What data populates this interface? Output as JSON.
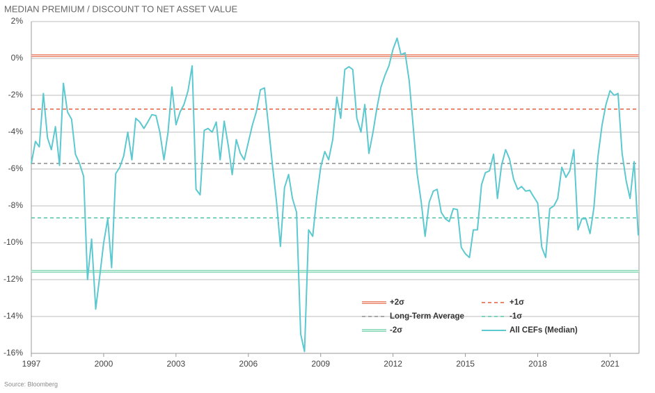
{
  "chart_data": {
    "type": "line",
    "title": "MEDIAN PREMIUM / DISCOUNT TO NET ASSET VALUE",
    "source": "Source: Bloomberg",
    "x": [
      1997,
      1997.17,
      1997.33,
      1997.5,
      1997.67,
      1997.83,
      1998,
      1998.17,
      1998.33,
      1998.5,
      1998.67,
      1998.83,
      1999,
      1999.17,
      1999.33,
      1999.5,
      1999.67,
      1999.83,
      2000,
      2000.17,
      2000.33,
      2000.5,
      2000.67,
      2000.83,
      2001,
      2001.17,
      2001.33,
      2001.5,
      2001.67,
      2001.83,
      2002,
      2002.17,
      2002.33,
      2002.5,
      2002.67,
      2002.83,
      2003,
      2003.17,
      2003.33,
      2003.5,
      2003.67,
      2003.83,
      2004,
      2004.17,
      2004.33,
      2004.5,
      2004.67,
      2004.83,
      2005,
      2005.17,
      2005.33,
      2005.5,
      2005.67,
      2005.83,
      2006,
      2006.17,
      2006.33,
      2006.5,
      2006.67,
      2006.83,
      2007,
      2007.17,
      2007.33,
      2007.5,
      2007.67,
      2007.83,
      2008,
      2008.17,
      2008.33,
      2008.5,
      2008.67,
      2008.83,
      2009,
      2009.17,
      2009.33,
      2009.5,
      2009.67,
      2009.83,
      2010,
      2010.17,
      2010.33,
      2010.5,
      2010.67,
      2010.83,
      2011,
      2011.17,
      2011.33,
      2011.5,
      2011.67,
      2011.83,
      2012,
      2012.17,
      2012.33,
      2012.5,
      2012.67,
      2012.83,
      2013,
      2013.17,
      2013.33,
      2013.5,
      2013.67,
      2013.83,
      2014,
      2014.17,
      2014.33,
      2014.5,
      2014.67,
      2014.83,
      2015,
      2015.17,
      2015.33,
      2015.5,
      2015.67,
      2015.83,
      2016,
      2016.17,
      2016.33,
      2016.5,
      2016.67,
      2016.83,
      2017,
      2017.17,
      2017.33,
      2017.5,
      2017.67,
      2017.83,
      2018,
      2018.17,
      2018.33,
      2018.5,
      2018.67,
      2018.83,
      2019,
      2019.17,
      2019.33,
      2019.5,
      2019.67,
      2019.83,
      2020,
      2020.17,
      2020.33,
      2020.5,
      2020.67,
      2020.83,
      2021,
      2021.17,
      2021.33,
      2021.5,
      2021.67,
      2021.83,
      2022,
      2022.17
    ],
    "series": [
      {
        "name": "All CEFs (Median)",
        "color": "#5cc8cf",
        "values": [
          -5.7,
          -4.5,
          -4.8,
          -1.9,
          -4.3,
          -4.95,
          -3.7,
          -5.8,
          -1.35,
          -2.9,
          -3.3,
          -5.2,
          -5.7,
          -6.4,
          -12.0,
          -9.8,
          -13.6,
          -11.9,
          -10.0,
          -8.7,
          -11.35,
          -6.25,
          -5.9,
          -5.3,
          -4.0,
          -5.5,
          -3.25,
          -3.45,
          -3.8,
          -3.45,
          -3.05,
          -3.1,
          -4.0,
          -5.5,
          -4.0,
          -1.55,
          -3.6,
          -2.9,
          -2.5,
          -1.75,
          -0.4,
          -7.1,
          -7.4,
          -3.9,
          -3.8,
          -4.0,
          -3.45,
          -5.5,
          -3.4,
          -4.75,
          -6.3,
          -4.4,
          -5.15,
          -5.5,
          -4.55,
          -3.6,
          -2.9,
          -1.7,
          -1.6,
          -3.6,
          -5.8,
          -7.8,
          -10.2,
          -7.0,
          -6.3,
          -7.6,
          -8.35,
          -14.95,
          -15.9,
          -9.3,
          -9.65,
          -7.6,
          -5.9,
          -5.05,
          -5.5,
          -4.4,
          -2.1,
          -3.25,
          -0.6,
          -0.45,
          -0.6,
          -3.25,
          -4.0,
          -2.5,
          -5.15,
          -4.0,
          -2.7,
          -1.55,
          -0.9,
          -0.4,
          0.5,
          1.1,
          0.2,
          0.3,
          -1.2,
          -3.6,
          -6.25,
          -7.8,
          -9.65,
          -7.8,
          -7.2,
          -7.1,
          -8.35,
          -8.7,
          -8.85,
          -8.15,
          -8.2,
          -10.25,
          -10.6,
          -10.8,
          -9.3,
          -9.3,
          -6.85,
          -6.2,
          -6.1,
          -5.2,
          -7.6,
          -5.8,
          -4.95,
          -5.45,
          -6.55,
          -7.1,
          -6.95,
          -7.2,
          -7.15,
          -7.5,
          -7.85,
          -10.25,
          -10.8,
          -8.15,
          -8.0,
          -7.6,
          -5.9,
          -6.45,
          -6.1,
          -4.95,
          -9.3,
          -8.7,
          -8.7,
          -9.5,
          -8.1,
          -5.3,
          -3.6,
          -2.5,
          -1.75,
          -2.0,
          -1.9,
          -5.15,
          -6.65,
          -7.6,
          -5.6,
          -9.6
        ]
      }
    ],
    "reference_lines": [
      {
        "name": "+2σ",
        "value": 0.15,
        "color": "#ec8a6f",
        "style": "double"
      },
      {
        "name": "+1σ",
        "value": -2.75,
        "color": "#ea5a3c",
        "style": "dashed"
      },
      {
        "name": "Long-Term Average",
        "value": -5.7,
        "color": "#8a8a8a",
        "style": "dashed"
      },
      {
        "name": "-1σ",
        "value": -8.65,
        "color": "#4ec5a5",
        "style": "dashed"
      },
      {
        "name": "-2σ",
        "value": -11.55,
        "color": "#86d8b6",
        "style": "double"
      }
    ],
    "xlim": [
      1997,
      2022.2
    ],
    "xticks": [
      1997,
      2000,
      2003,
      2006,
      2009,
      2012,
      2015,
      2018,
      2021
    ],
    "ylim": [
      -16,
      2
    ],
    "yticks": [
      {
        "value": 2,
        "label": "2%"
      },
      {
        "value": 0,
        "label": "0%"
      },
      {
        "value": -2,
        "label": "-2%"
      },
      {
        "value": -4,
        "label": "-4%"
      },
      {
        "value": -6,
        "label": "-6%"
      },
      {
        "value": -8,
        "label": "-8%"
      },
      {
        "value": -10,
        "label": "-10%"
      },
      {
        "value": -12,
        "label": "-12%"
      },
      {
        "value": -14,
        "label": "-14%"
      },
      {
        "value": -16,
        "label": "-16%"
      }
    ],
    "grid": true,
    "legend": "lower right"
  }
}
